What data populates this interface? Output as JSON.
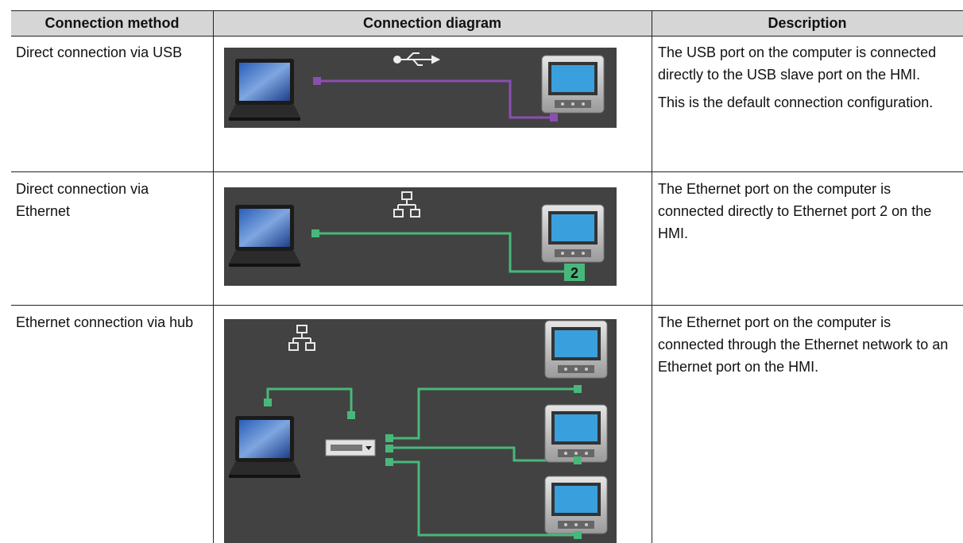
{
  "table": {
    "headers": [
      "Connection method",
      "Connection diagram",
      "Description"
    ],
    "rows": [
      {
        "method": "Direct connection via USB",
        "description": [
          "The USB port on the computer is connected directly to the USB slave port on the HMI.",
          "This is the default connection configuration."
        ]
      },
      {
        "method": "Direct connection via Ethernet",
        "description": [
          "The Ethernet port on the computer is connected directly to Ethernet port 2 on the HMI."
        ],
        "port_label": "2"
      },
      {
        "method": "Ethernet connection via hub",
        "description": [
          "The Ethernet port on the computer is connected through the Ethernet network to an Ethernet port on the HMI."
        ]
      }
    ]
  }
}
